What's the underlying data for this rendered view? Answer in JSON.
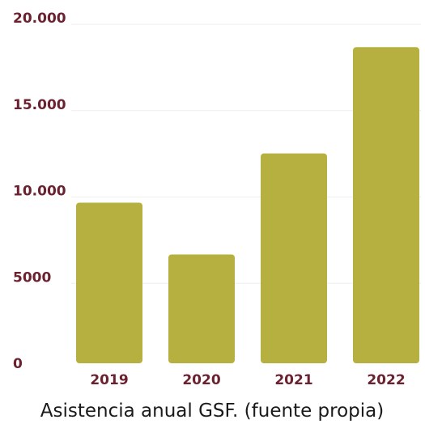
{
  "chart_data": {
    "type": "bar",
    "categories": [
      "2019",
      "2020",
      "2021",
      "2022"
    ],
    "values": [
      9300,
      6300,
      12150,
      18300
    ],
    "ylim": [
      0,
      20000
    ],
    "yticks": [
      0,
      5000,
      10000,
      15000,
      20000
    ],
    "ytick_labels": [
      "0",
      "5000",
      "10.000",
      "15.000",
      "20.000"
    ],
    "grid": true,
    "caption": "Asistencia anual GSF. (fuente propia)",
    "colors": {
      "bar": "#b5b03f",
      "tick_label": "#6b2230",
      "grid": "#eeeeee",
      "caption": "#1a1a1a"
    }
  }
}
